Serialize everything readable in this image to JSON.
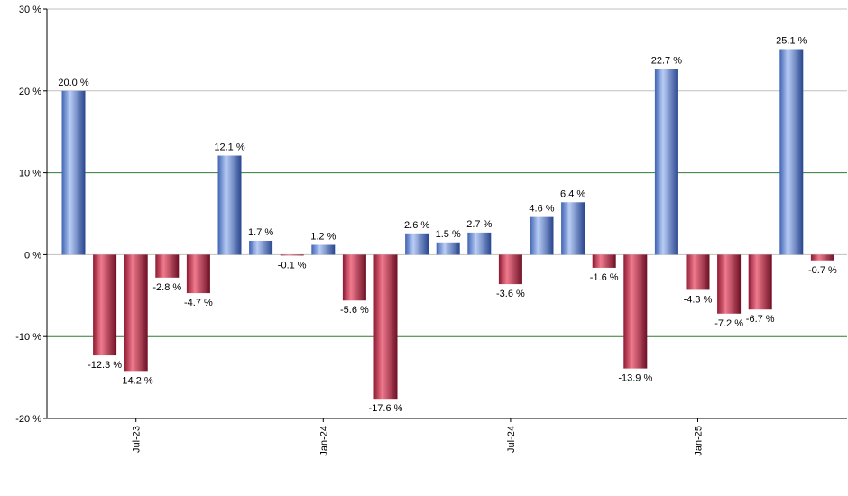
{
  "chart_data": {
    "type": "bar",
    "title": "",
    "xlabel": "",
    "ylabel": "",
    "ylim": [
      -20,
      30
    ],
    "yticks": [
      {
        "value": -20,
        "label": "-20 %"
      },
      {
        "value": -10,
        "label": "-10 %"
      },
      {
        "value": 0,
        "label": "0 %"
      },
      {
        "value": 10,
        "label": "10 %"
      },
      {
        "value": 20,
        "label": "20 %"
      },
      {
        "value": 30,
        "label": "30 %"
      }
    ],
    "reference_lines": [
      10,
      -10
    ],
    "colors": {
      "positive": "#6f93d8",
      "negative": "#c8324f",
      "grid": "#c0c0c0",
      "reference": "#2e7d32",
      "axis": "#000000"
    },
    "values": [
      20.0,
      -12.3,
      -14.2,
      -2.8,
      -4.7,
      12.1,
      1.7,
      -0.1,
      1.2,
      -5.6,
      -17.6,
      2.6,
      1.5,
      2.7,
      -3.6,
      4.6,
      6.4,
      -1.6,
      -13.9,
      22.7,
      -4.3,
      -7.2,
      -6.7,
      25.1,
      -0.7
    ],
    "value_labels": [
      "20.0 %",
      "-12.3 %",
      "-14.2 %",
      "-2.8 %",
      "-4.7 %",
      "12.1 %",
      "1.7 %",
      "-0.1 %",
      "1.2 %",
      "-5.6 %",
      "-17.6 %",
      "2.6 %",
      "1.5 %",
      "2.7 %",
      "-3.6 %",
      "4.6 %",
      "6.4 %",
      "-1.6 %",
      "-13.9 %",
      "22.7 %",
      "-4.3 %",
      "-7.2 %",
      "-6.7 %",
      "25.1 %",
      "-0.7 %"
    ],
    "x_tick_labels": [
      {
        "index": 2,
        "label": "Jul-23"
      },
      {
        "index": 8,
        "label": "Jan-24"
      },
      {
        "index": 14,
        "label": "Jul-24"
      },
      {
        "index": 20,
        "label": "Jan-25"
      }
    ]
  }
}
